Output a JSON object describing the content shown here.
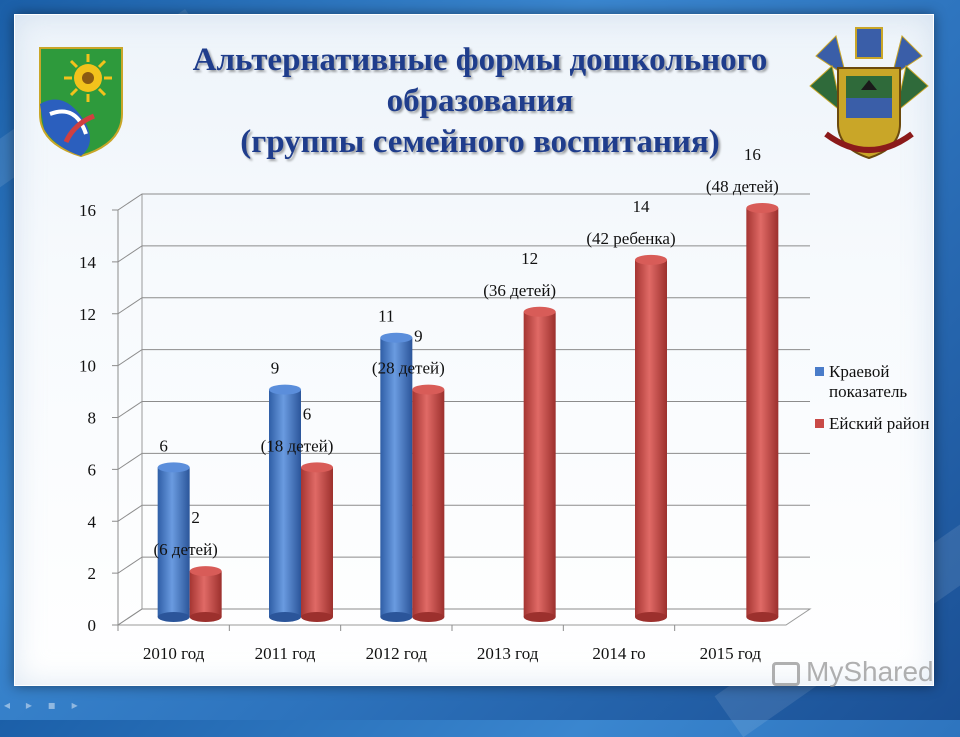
{
  "title": {
    "line1": "Альтернативные формы дошкольного",
    "line2": "образования",
    "line3": "(группы семейного воспитания)"
  },
  "watermark": "MyShared",
  "colors": {
    "series1": "#4a7cc9",
    "series2": "#c94a47",
    "title": "#1f3d8c"
  },
  "chart_data": {
    "type": "bar",
    "categories": [
      "2010 год",
      "2011 год",
      "2012 год",
      "2013 год",
      "2014 го",
      "2015 год"
    ],
    "series": [
      {
        "name": "Краевой показатель",
        "values": [
          6,
          9,
          11,
          null,
          null,
          null
        ],
        "color": "#4a7cc9",
        "labels": [
          [
            "6"
          ],
          [
            "9"
          ],
          [
            "11"
          ],
          [],
          [],
          []
        ]
      },
      {
        "name": "Ейский район",
        "values": [
          2,
          6,
          9,
          12,
          14,
          16
        ],
        "color": "#c94a47",
        "labels": [
          [
            "2",
            "(6 детей)"
          ],
          [
            "6",
            "(18 детей)"
          ],
          [
            "9",
            "(28 детей)"
          ],
          [
            "12",
            "(36 детей)"
          ],
          [
            "14",
            "(42 ребенка)"
          ],
          [
            "16",
            "(48 детей)"
          ]
        ]
      }
    ],
    "yticks": [
      "0",
      "2",
      "4",
      "6",
      "8",
      "10",
      "12",
      "14",
      "16"
    ],
    "ylim": [
      0,
      16
    ],
    "grid": true,
    "legend": "right"
  }
}
